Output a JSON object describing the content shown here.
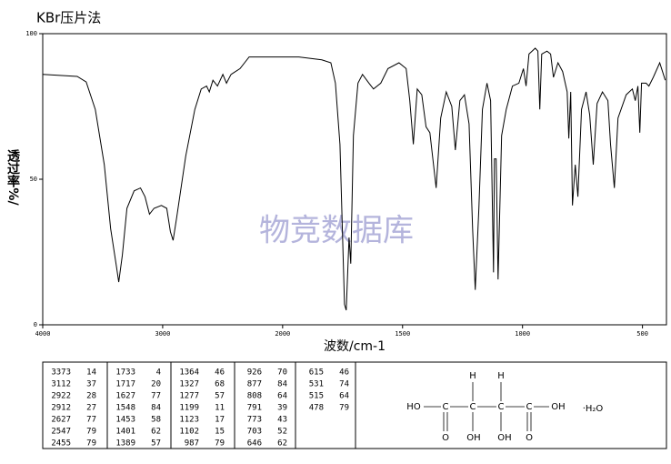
{
  "chart_data": {
    "type": "line",
    "title": "KBr压片法",
    "xlabel": "波数/cm-1",
    "ylabel": "透过率%/",
    "watermark": "物竞数据库",
    "xlim": [
      4000,
      400
    ],
    "xscale_break": 2000,
    "xticks": [
      4000,
      3000,
      2000,
      1500,
      1000,
      500
    ],
    "ylim": [
      0,
      100
    ],
    "yticks": [
      0,
      50,
      100
    ],
    "color": "#000000",
    "x": [
      4000,
      3713,
      3638,
      3562,
      3487,
      3434,
      3389,
      3366,
      3336,
      3298,
      3238,
      3185,
      3147,
      3110,
      3072,
      3011,
      2966,
      2936,
      2913,
      2883,
      2808,
      2732,
      2679,
      2634,
      2611,
      2581,
      2543,
      2498,
      2468,
      2430,
      2355,
      2279,
      2091,
      1932,
      1837,
      1799,
      1780,
      1761,
      1742,
      1735,
      1723,
      1716,
      1705,
      1686,
      1667,
      1640,
      1621,
      1591,
      1561,
      1515,
      1485,
      1470,
      1455,
      1439,
      1420,
      1402,
      1386,
      1371,
      1360,
      1341,
      1318,
      1295,
      1280,
      1261,
      1242,
      1223,
      1208,
      1197,
      1182,
      1167,
      1148,
      1133,
      1121,
      1117,
      1110,
      1102,
      1087,
      1068,
      1042,
      1015,
      996,
      985,
      973,
      947,
      936,
      928,
      920,
      898,
      883,
      871,
      852,
      833,
      814,
      807,
      799,
      792,
      780,
      769,
      754,
      735,
      720,
      705,
      689,
      667,
      644,
      633,
      617,
      602,
      568,
      542,
      530,
      519,
      511,
      504,
      485,
      473,
      455,
      428,
      405
    ],
    "values": [
      86,
      85.3,
      83.4,
      74,
      55,
      33,
      21,
      14.7,
      24,
      40,
      46,
      47,
      44,
      38,
      40,
      41,
      40,
      32,
      29,
      37,
      58,
      74,
      81,
      82,
      80,
      84,
      82,
      86,
      83,
      86,
      88,
      92,
      92,
      92,
      91,
      90,
      83,
      62,
      7,
      5,
      30,
      21,
      65,
      83,
      86,
      83,
      81,
      83,
      88,
      90,
      88,
      77,
      62,
      81,
      79,
      68,
      66,
      55,
      47,
      71,
      80,
      75,
      60,
      77,
      79,
      69,
      33,
      12,
      40,
      74,
      83,
      77,
      18,
      57,
      57,
      15.6,
      65,
      74,
      82,
      83,
      88,
      82,
      93,
      95,
      94,
      74,
      93,
      94,
      93,
      85,
      90,
      87,
      80,
      64,
      80,
      41,
      55,
      44,
      74,
      80,
      72,
      55,
      76,
      80,
      77,
      62,
      47,
      71,
      79,
      81,
      77,
      82,
      66,
      83,
      83,
      82,
      85,
      90,
      84
    ]
  },
  "peak_table": [
    [
      [
        3373,
        14
      ],
      [
        3112,
        37
      ],
      [
        2922,
        28
      ],
      [
        2912,
        27
      ],
      [
        2627,
        77
      ],
      [
        2547,
        79
      ],
      [
        2455,
        79
      ]
    ],
    [
      [
        1733,
        4
      ],
      [
        1717,
        20
      ],
      [
        1627,
        77
      ],
      [
        1548,
        84
      ],
      [
        1453,
        58
      ],
      [
        1401,
        62
      ],
      [
        1389,
        57
      ]
    ],
    [
      [
        1364,
        46
      ],
      [
        1327,
        68
      ],
      [
        1277,
        57
      ],
      [
        1199,
        11
      ],
      [
        1123,
        17
      ],
      [
        1102,
        15
      ],
      [
        987,
        79
      ]
    ],
    [
      [
        926,
        70
      ],
      [
        877,
        84
      ],
      [
        808,
        64
      ],
      [
        791,
        39
      ],
      [
        773,
        43
      ],
      [
        703,
        52
      ],
      [
        646,
        62
      ]
    ],
    [
      [
        615,
        46
      ],
      [
        531,
        74
      ],
      [
        515,
        64
      ],
      [
        478,
        79
      ]
    ]
  ],
  "structure": {
    "labels": [
      "H",
      "H",
      "HO",
      "C",
      "C",
      "C",
      "C",
      "OH",
      "O",
      "OH",
      "OH",
      "O",
      "·H₂O"
    ]
  }
}
